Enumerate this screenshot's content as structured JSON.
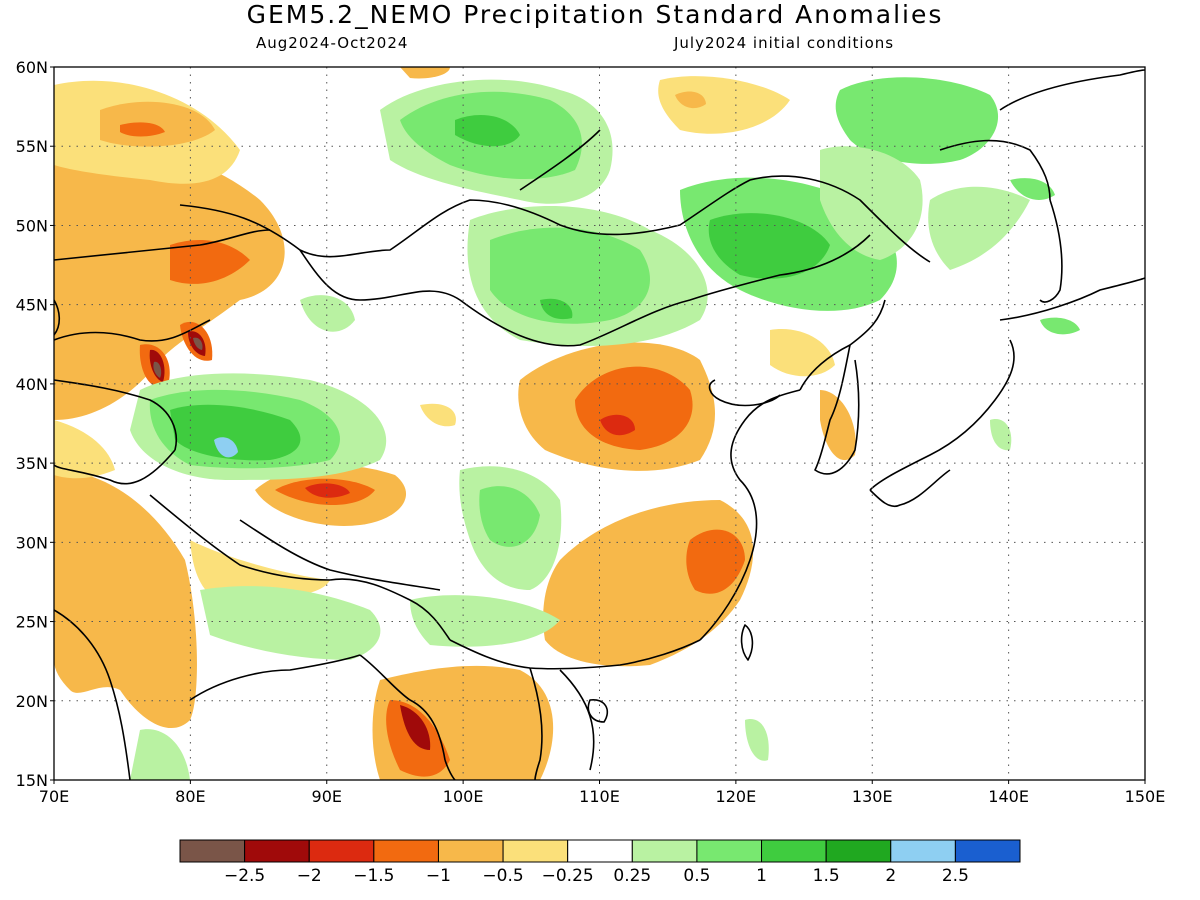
{
  "title": "GEM5.2_NEMO Precipitation Standard Anomalies",
  "subtitle_period": "Aug2024-Oct2024",
  "subtitle_init": "July2024 initial conditions",
  "map": {
    "lon_range": [
      70,
      150
    ],
    "lat_range": [
      15,
      60
    ],
    "lon_ticks": [
      "70E",
      "80E",
      "90E",
      "100E",
      "110E",
      "120E",
      "130E",
      "140E",
      "150E"
    ],
    "lat_ticks": [
      "60N",
      "55N",
      "50N",
      "45N",
      "40N",
      "35N",
      "30N",
      "25N",
      "20N",
      "15N"
    ],
    "grid": "dotted"
  },
  "colorbar": {
    "colors": [
      "#7a5548",
      "#a00a0a",
      "#dc2a10",
      "#f26a10",
      "#f7b84a",
      "#fbe07a",
      "#ffffff",
      "#b9f2a2",
      "#78e870",
      "#3fcc3f",
      "#20a820",
      "#8ecff2",
      "#1a5fd0"
    ],
    "labels": [
      "−2.5",
      "−2",
      "−1.5",
      "−1",
      "−0.5",
      "−0.25",
      "0.25",
      "0.5",
      "1",
      "1.5",
      "2",
      "2.5"
    ]
  }
}
